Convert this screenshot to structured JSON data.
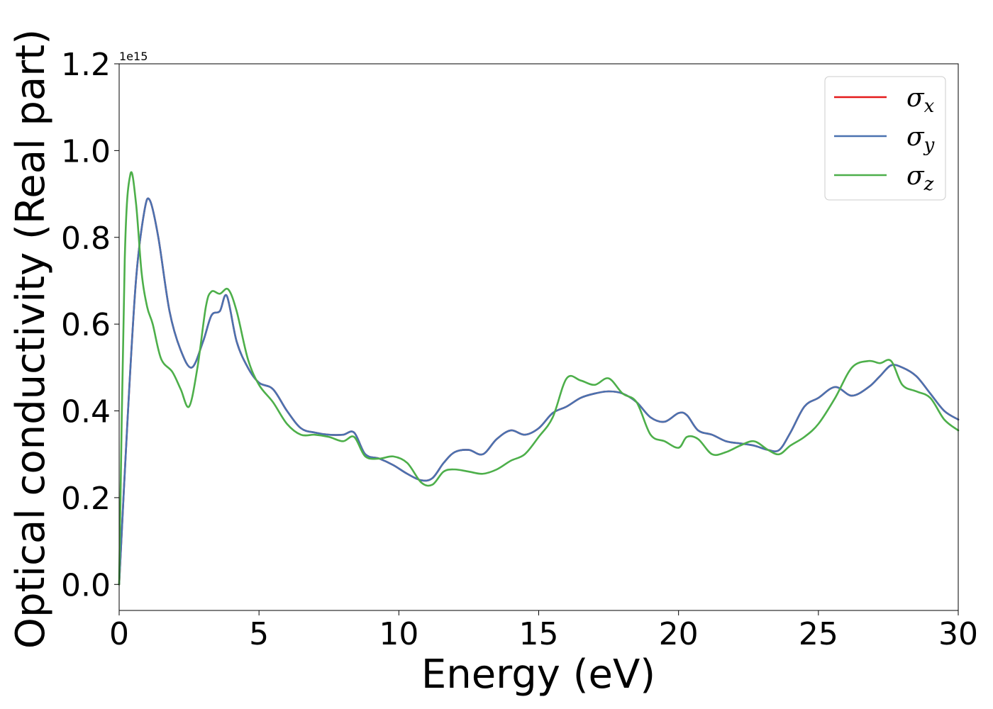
{
  "chart_data": {
    "type": "line",
    "xlabel": "Energy (eV)",
    "ylabel": "Optical conductivity (Real part)",
    "y_offset_label": "1e15",
    "xlim": [
      0,
      30
    ],
    "ylim": [
      -0.06,
      1.2
    ],
    "x_ticks": [
      0,
      5,
      10,
      15,
      20,
      25,
      30
    ],
    "y_ticks": [
      0.0,
      0.2,
      0.4,
      0.6,
      0.8,
      1.0,
      1.2
    ],
    "y_tick_labels": [
      "0.0",
      "0.2",
      "0.4",
      "0.6",
      "0.8",
      "1.0",
      "1.2"
    ],
    "grid": false,
    "legend_position": "top-right",
    "series": [
      {
        "name": "σ_x",
        "symbol": "σ",
        "subscript": "x",
        "color": "#e41a1c",
        "x": [
          0,
          0.3,
          0.6,
          0.9,
          1.1,
          1.4,
          1.8,
          2.2,
          2.6,
          3.0,
          3.3,
          3.6,
          3.85,
          4.2,
          4.6,
          5.0,
          5.5,
          6.0,
          6.5,
          7.0,
          7.5,
          8.0,
          8.4,
          8.8,
          9.3,
          9.8,
          10.3,
          10.8,
          11.2,
          11.6,
          12.0,
          12.5,
          13.0,
          13.5,
          14.0,
          14.5,
          15.0,
          15.5,
          16.0,
          16.5,
          17.0,
          17.5,
          18.0,
          18.5,
          19.0,
          19.5,
          20.0,
          20.3,
          20.7,
          21.2,
          21.7,
          22.2,
          22.7,
          23.2,
          23.6,
          24.0,
          24.5,
          25.0,
          25.6,
          26.2,
          26.8,
          27.2,
          27.6,
          28.0,
          28.5,
          29.0,
          29.5,
          30.0
        ],
        "y": [
          0.0,
          0.38,
          0.7,
          0.86,
          0.885,
          0.8,
          0.63,
          0.54,
          0.5,
          0.56,
          0.62,
          0.63,
          0.665,
          0.56,
          0.5,
          0.465,
          0.45,
          0.4,
          0.36,
          0.35,
          0.345,
          0.345,
          0.35,
          0.3,
          0.29,
          0.275,
          0.255,
          0.24,
          0.245,
          0.28,
          0.305,
          0.31,
          0.3,
          0.335,
          0.355,
          0.345,
          0.36,
          0.395,
          0.41,
          0.43,
          0.44,
          0.445,
          0.44,
          0.42,
          0.385,
          0.375,
          0.395,
          0.39,
          0.355,
          0.345,
          0.33,
          0.325,
          0.32,
          0.31,
          0.31,
          0.35,
          0.41,
          0.43,
          0.455,
          0.435,
          0.455,
          0.48,
          0.505,
          0.5,
          0.48,
          0.44,
          0.4,
          0.38
        ]
      },
      {
        "name": "σ_y",
        "symbol": "σ",
        "subscript": "y",
        "color": "#4a72b0",
        "x": [
          0,
          0.3,
          0.6,
          0.9,
          1.1,
          1.4,
          1.8,
          2.2,
          2.6,
          3.0,
          3.3,
          3.6,
          3.85,
          4.2,
          4.6,
          5.0,
          5.5,
          6.0,
          6.5,
          7.0,
          7.5,
          8.0,
          8.4,
          8.8,
          9.3,
          9.8,
          10.3,
          10.8,
          11.2,
          11.6,
          12.0,
          12.5,
          13.0,
          13.5,
          14.0,
          14.5,
          15.0,
          15.5,
          16.0,
          16.5,
          17.0,
          17.5,
          18.0,
          18.5,
          19.0,
          19.5,
          20.0,
          20.3,
          20.7,
          21.2,
          21.7,
          22.2,
          22.7,
          23.2,
          23.6,
          24.0,
          24.5,
          25.0,
          25.6,
          26.2,
          26.8,
          27.2,
          27.6,
          28.0,
          28.5,
          29.0,
          29.5,
          30.0
        ],
        "y": [
          0.0,
          0.38,
          0.7,
          0.86,
          0.885,
          0.8,
          0.63,
          0.54,
          0.5,
          0.56,
          0.62,
          0.63,
          0.665,
          0.56,
          0.5,
          0.465,
          0.45,
          0.4,
          0.36,
          0.35,
          0.345,
          0.345,
          0.35,
          0.3,
          0.29,
          0.275,
          0.255,
          0.24,
          0.245,
          0.28,
          0.305,
          0.31,
          0.3,
          0.335,
          0.355,
          0.345,
          0.36,
          0.395,
          0.41,
          0.43,
          0.44,
          0.445,
          0.44,
          0.42,
          0.385,
          0.375,
          0.395,
          0.39,
          0.355,
          0.345,
          0.33,
          0.325,
          0.32,
          0.31,
          0.31,
          0.35,
          0.41,
          0.43,
          0.455,
          0.435,
          0.455,
          0.48,
          0.505,
          0.5,
          0.48,
          0.44,
          0.4,
          0.38
        ]
      },
      {
        "name": "σ_z",
        "symbol": "σ",
        "subscript": "z",
        "color": "#4daf4a",
        "x": [
          0,
          0.2,
          0.4,
          0.6,
          0.8,
          1.0,
          1.2,
          1.5,
          1.9,
          2.2,
          2.5,
          2.8,
          3.1,
          3.3,
          3.6,
          3.9,
          4.2,
          4.6,
          5.0,
          5.5,
          6.0,
          6.5,
          7.0,
          7.5,
          8.0,
          8.4,
          8.8,
          9.3,
          9.8,
          10.3,
          10.8,
          11.2,
          11.6,
          12.0,
          12.5,
          13.0,
          13.5,
          14.0,
          14.5,
          15.0,
          15.5,
          16.0,
          16.5,
          17.0,
          17.5,
          18.0,
          18.5,
          19.0,
          19.5,
          20.0,
          20.3,
          20.7,
          21.2,
          21.7,
          22.2,
          22.7,
          23.2,
          23.6,
          24.0,
          24.5,
          25.0,
          25.6,
          26.2,
          26.8,
          27.2,
          27.6,
          28.0,
          28.5,
          29.0,
          29.5,
          30.0
        ],
        "y": [
          0.0,
          0.75,
          0.945,
          0.88,
          0.72,
          0.64,
          0.6,
          0.52,
          0.49,
          0.45,
          0.41,
          0.5,
          0.64,
          0.675,
          0.67,
          0.68,
          0.63,
          0.52,
          0.46,
          0.42,
          0.37,
          0.345,
          0.345,
          0.34,
          0.33,
          0.34,
          0.295,
          0.29,
          0.295,
          0.28,
          0.235,
          0.23,
          0.26,
          0.265,
          0.26,
          0.255,
          0.265,
          0.285,
          0.3,
          0.34,
          0.385,
          0.475,
          0.47,
          0.46,
          0.475,
          0.44,
          0.42,
          0.345,
          0.33,
          0.315,
          0.34,
          0.335,
          0.3,
          0.305,
          0.32,
          0.33,
          0.31,
          0.3,
          0.32,
          0.34,
          0.37,
          0.43,
          0.5,
          0.515,
          0.51,
          0.515,
          0.46,
          0.445,
          0.43,
          0.38,
          0.355
        ]
      }
    ]
  }
}
